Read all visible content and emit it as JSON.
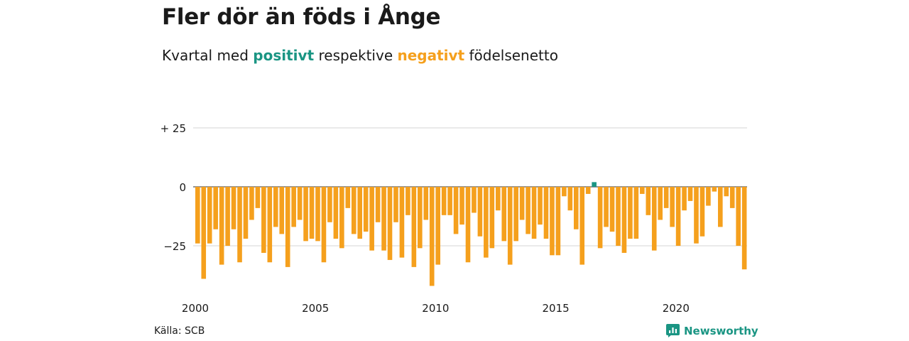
{
  "title": "Fler dör än föds i Ånge",
  "subtitle": {
    "pre": "Kvartal med",
    "positive": "positivt",
    "mid": "respektive",
    "negative": "negativt",
    "post": "födelsenetto"
  },
  "source": "Källa: SCB",
  "brand": "Newsworthy",
  "colors": {
    "positive": "#1a9583",
    "negative": "#f5a01d",
    "brand": "#1a9583"
  },
  "chart_data": {
    "type": "bar",
    "x_start": "2000 Q1",
    "x_ticks": [
      "2000",
      "2005",
      "2010",
      "2015",
      "2020"
    ],
    "y_ticks": [
      {
        "value": 25,
        "label": "+ 25"
      },
      {
        "value": 0,
        "label": "0"
      },
      {
        "value": -25,
        "label": "−25"
      }
    ],
    "ylim": [
      -42,
      25
    ],
    "grid": true,
    "values": [
      -24,
      -39,
      -24,
      -18,
      -33,
      -25,
      -18,
      -32,
      -22,
      -14,
      -9,
      -28,
      -32,
      -17,
      -20,
      -34,
      -17,
      -14,
      -23,
      -22,
      -23,
      -32,
      -15,
      -22,
      -26,
      -9,
      -20,
      -22,
      -19,
      -27,
      -15,
      -27,
      -31,
      -15,
      -30,
      -12,
      -34,
      -26,
      -14,
      -42,
      -33,
      -12,
      -12,
      -20,
      -16,
      -32,
      -11,
      -21,
      -30,
      -26,
      -10,
      -23,
      -33,
      -23,
      -14,
      -20,
      -22,
      -16,
      -22,
      -29,
      -29,
      -4,
      -10,
      -18,
      -33,
      -3,
      2,
      -26,
      -17,
      -19,
      -25,
      -28,
      -22,
      -22,
      -3,
      -12,
      -27,
      -14,
      -9,
      -17,
      -25,
      -10,
      -6,
      -24,
      -21,
      -8,
      -2,
      -17,
      -4,
      -9,
      -25,
      -35
    ]
  }
}
